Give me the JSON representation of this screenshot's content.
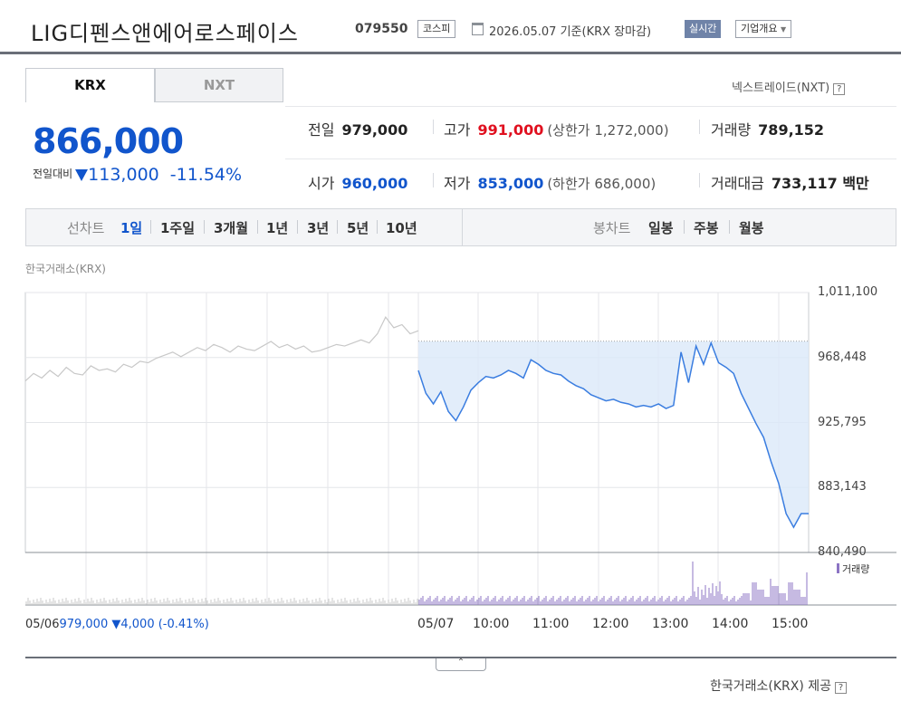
{
  "header": {
    "company": "LIG디펜스앤에어로스페이스",
    "code": "079550",
    "market_badge": "코스피",
    "date": "2026.05.07",
    "basis": "기준(KRX 장마감)",
    "realtime": "실시간",
    "corp_info": "기업개요"
  },
  "tabs": {
    "krx": "KRX",
    "nxt": "NXT"
  },
  "nxt_link": "넥스트레이드(NXT)",
  "quote": {
    "price": "866,000",
    "change_label": "전일대비",
    "change": "113,000",
    "change_pct": "-11.54%"
  },
  "stats": {
    "prev_close_label": "전일",
    "prev_close": "979,000",
    "high_label": "고가",
    "high": "991,000",
    "upper_limit": "(상한가 1,272,000)",
    "volume_label": "거래량",
    "volume": "789,152",
    "open_label": "시가",
    "open": "960,000",
    "low_label": "저가",
    "low": "853,000",
    "lower_limit": "(하한가 686,000)",
    "trade_value_label": "거래대금",
    "trade_value": "733,117 백만"
  },
  "periods": {
    "line_label": "선차트",
    "items": [
      "1일",
      "1주일",
      "3개월",
      "1년",
      "3년",
      "5년",
      "10년"
    ],
    "candle_label": "봉차트",
    "candle_items": [
      "일봉",
      "주봉",
      "월봉"
    ]
  },
  "chart_source": "한국거래소(KRX)",
  "chart_data": {
    "type": "line",
    "y_ticks": [
      "1,011,100",
      "968,448",
      "925,795",
      "883,143",
      "840,490"
    ],
    "ylim": [
      840490,
      1011100
    ],
    "x_ticks": [
      "05/07",
      "10:00",
      "11:00",
      "12:00",
      "13:00",
      "14:00",
      "15:00"
    ],
    "prev_date": "05/06",
    "prev_close_note": "979,000",
    "prev_change": "▼4,000 (-0.41%)",
    "volume_legend": "거래량",
    "prev_day_series": [
      953000,
      958000,
      955000,
      960000,
      956000,
      962000,
      958000,
      957000,
      963000,
      960000,
      961000,
      959000,
      964000,
      962000,
      966000,
      965000,
      968000,
      970000,
      972000,
      969000,
      972000,
      975000,
      973000,
      977000,
      975000,
      972000,
      976000,
      974000,
      973000,
      976000,
      979000,
      975000,
      977000,
      974000,
      976000,
      972000,
      973000,
      975000,
      977000,
      976000,
      978000,
      980000,
      978000,
      984000,
      995000,
      988000,
      990000,
      984000,
      986000
    ],
    "today_series": [
      960000,
      945000,
      938000,
      946000,
      933000,
      927000,
      936000,
      947000,
      952000,
      956000,
      955000,
      957000,
      960000,
      958000,
      955000,
      967000,
      964000,
      960000,
      958000,
      957000,
      953000,
      950000,
      948000,
      944000,
      942000,
      940000,
      941000,
      939000,
      938000,
      936000,
      937000,
      936000,
      938000,
      935000,
      937000,
      972000,
      952000,
      976000,
      964000,
      978000,
      965000,
      962000,
      958000,
      945000,
      935000,
      925000,
      916000,
      900000,
      886000,
      866000,
      857000,
      866000,
      866000
    ]
  },
  "footer": {
    "credit": "한국거래소(KRX) 제공",
    "handle": "⌃"
  }
}
